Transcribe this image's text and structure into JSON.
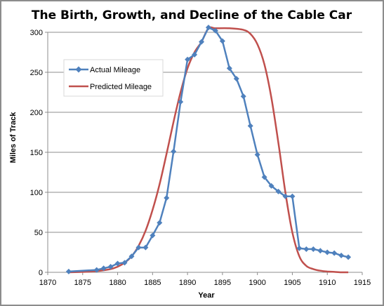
{
  "chart_data": {
    "type": "line",
    "title": "The Birth, Growth, and Decline of the Cable Car",
    "xlabel": "Year",
    "ylabel": "Miles of Track",
    "xlim": [
      1870,
      1915
    ],
    "ylim": [
      0,
      300
    ],
    "xticks": [
      1870,
      1875,
      1880,
      1885,
      1890,
      1895,
      1900,
      1905,
      1910,
      1915
    ],
    "yticks": [
      0,
      50,
      100,
      150,
      200,
      250,
      300
    ],
    "grid": "horizontal",
    "legend_position": "upper-left",
    "series": [
      {
        "name": "Actual Mileage",
        "color": "#4f81bd",
        "marker": "diamond",
        "x": [
          1873,
          1877,
          1878,
          1879,
          1880,
          1881,
          1882,
          1883,
          1884,
          1885,
          1886,
          1887,
          1888,
          1889,
          1890,
          1891,
          1892,
          1893,
          1894,
          1895,
          1896,
          1897,
          1898,
          1899,
          1900,
          1901,
          1902,
          1903,
          1904,
          1905,
          1906,
          1907,
          1908,
          1909,
          1910,
          1911,
          1912,
          1913
        ],
        "y": [
          1,
          3,
          5,
          7,
          11,
          12,
          20,
          31,
          31,
          46,
          62,
          93,
          151,
          213,
          266,
          272,
          288,
          306,
          302,
          289,
          255,
          242,
          220,
          183,
          147,
          119,
          108,
          101,
          95,
          95,
          30,
          29,
          29,
          27,
          25,
          24,
          21,
          19
        ]
      },
      {
        "name": "Predicted Mileage",
        "color": "#c0504d",
        "marker": "none",
        "x": [
          1873,
          1875,
          1877,
          1879,
          1880,
          1881,
          1882,
          1883,
          1884,
          1885,
          1886,
          1887,
          1888,
          1889,
          1890,
          1891,
          1892,
          1893,
          1894,
          1896,
          1898,
          1899,
          1900,
          1901,
          1902,
          1903,
          1904,
          1905,
          1906,
          1907,
          1908,
          1909,
          1910,
          1911,
          1912,
          1913
        ],
        "y": [
          0,
          0.5,
          1.5,
          4,
          7,
          12,
          20,
          33,
          52,
          78,
          110,
          148,
          188,
          225,
          255,
          275,
          288,
          305,
          305,
          305,
          303,
          298,
          285,
          260,
          218,
          162,
          100,
          50,
          20,
          8,
          4,
          2,
          1,
          0.5,
          0,
          0
        ]
      }
    ]
  }
}
